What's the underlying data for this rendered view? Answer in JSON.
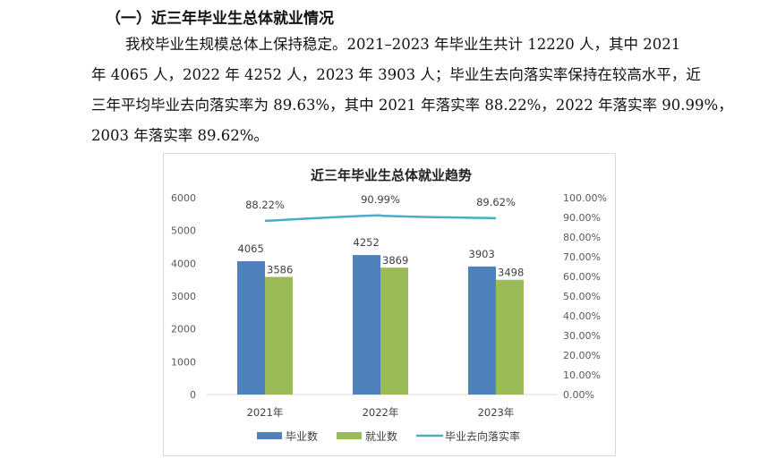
{
  "heading": "（一）近三年毕业生总体就业情况",
  "paragraph_lines": [
    "我校毕业生规模总体上保持稳定。2021–2023 年毕业生共计 12220 人，其中 2021",
    "年 4065 人，2022 年 4252 人，2023 年 3903 人；毕业生去向落实率保持在较高水平，近",
    "三年平均毕业去向落实率为 89.63%，其中 2021 年落实率 88.22%，2022 年落实率 90.99%，",
    "2003 年落实率 89.62%。"
  ],
  "chart_data": {
    "type": "bar+line",
    "title": "近三年毕业生总体就业趋势",
    "categories": [
      "2021年",
      "2022年",
      "2023年"
    ],
    "series": [
      {
        "name": "毕业数",
        "type": "bar",
        "axis": "left",
        "color": "#4f81bd",
        "values": [
          4065,
          4252,
          3903
        ],
        "labels": [
          "4065",
          "4252",
          "3903"
        ]
      },
      {
        "name": "就业数",
        "type": "bar",
        "axis": "left",
        "color": "#9bbb59",
        "values": [
          3586,
          3869,
          3498
        ],
        "labels": [
          "3586",
          "3869",
          "3498"
        ]
      },
      {
        "name": "毕业去向落实率",
        "type": "line",
        "axis": "right",
        "color": "#4bacc6",
        "values": [
          88.22,
          90.99,
          89.62
        ],
        "labels": [
          "88.22%",
          "90.99%",
          "89.62%"
        ]
      }
    ],
    "y_left": {
      "range": [
        0,
        6000
      ],
      "ticks": [
        "0",
        "1000",
        "2000",
        "3000",
        "4000",
        "5000",
        "6000"
      ]
    },
    "y_right": {
      "range": [
        0,
        100
      ],
      "ticks": [
        "0.00%",
        "10.00%",
        "20.00%",
        "30.00%",
        "40.00%",
        "50.00%",
        "60.00%",
        "70.00%",
        "80.00%",
        "90.00%",
        "100.00%"
      ]
    },
    "grid": false,
    "legend_position": "bottom"
  }
}
